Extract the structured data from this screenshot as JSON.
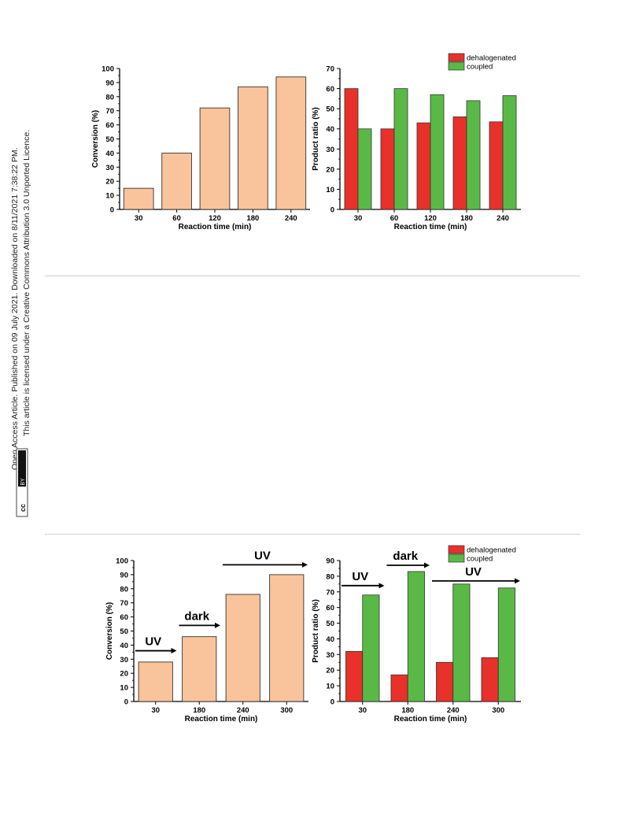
{
  "side_note": {
    "line1": "Open Access Article. Published on 09 July 2021. Downloaded on 8/11/2021 7:38:22 PM.",
    "line2": "This article is licensed under a Creative Commons Attribution 3.0 Unported Licence.",
    "badge_left": "cc",
    "badge_right": "BY"
  },
  "colors": {
    "conversion_bar": "#f9c49b",
    "dehalogenated": "#e8312a",
    "coupled": "#5ab946",
    "rule": "#cfcfc4"
  },
  "chart_data": [
    {
      "type": "bar",
      "categories": [
        "30",
        "60",
        "120",
        "180",
        "240"
      ],
      "values": [
        15,
        40,
        72,
        87,
        94
      ],
      "xlabel": "Reaction time (min)",
      "ylabel": "Conversion (%)",
      "ylim": [
        0,
        100
      ],
      "yticks": [
        0,
        10,
        20,
        30,
        40,
        50,
        60,
        70,
        80,
        90,
        100
      ],
      "annotations": []
    },
    {
      "type": "bar",
      "categories": [
        "30",
        "60",
        "120",
        "180",
        "240"
      ],
      "series": [
        {
          "name": "dehalogenated",
          "values": [
            60,
            40,
            43,
            46,
            43.5
          ]
        },
        {
          "name": "coupled",
          "values": [
            40,
            60,
            57,
            54,
            56.5
          ]
        }
      ],
      "xlabel": "Reaction time (min)",
      "ylabel": "Product ratio (%)",
      "ylim": [
        0,
        70
      ],
      "yticks": [
        0,
        10,
        20,
        30,
        40,
        50,
        60,
        70
      ],
      "legend": "top-right",
      "annotations": []
    },
    {
      "type": "bar",
      "categories": [
        "30",
        "180",
        "240",
        "300"
      ],
      "values": [
        28,
        46,
        76,
        90
      ],
      "xlabel": "Reaction time (min)",
      "ylabel": "Conversion (%)",
      "ylim": [
        0,
        100
      ],
      "yticks": [
        0,
        10,
        20,
        30,
        40,
        50,
        60,
        70,
        80,
        90,
        100
      ],
      "annotations": [
        {
          "text": "UV",
          "y": 36,
          "from": 0,
          "to": 1
        },
        {
          "text": "dark",
          "y": 54,
          "from": 1,
          "to": 2
        },
        {
          "text": "UV",
          "y": 97,
          "from": 2,
          "to": 4
        }
      ]
    },
    {
      "type": "bar",
      "categories": [
        "30",
        "180",
        "240",
        "300"
      ],
      "series": [
        {
          "name": "dehalogenated",
          "values": [
            32,
            17,
            25,
            28
          ]
        },
        {
          "name": "coupled",
          "values": [
            68,
            83,
            75,
            72.5
          ]
        }
      ],
      "xlabel": "Reaction time (min)",
      "ylabel": "Product ratio (%)",
      "ylim": [
        0,
        90
      ],
      "yticks": [
        0,
        10,
        20,
        30,
        40,
        50,
        60,
        70,
        80,
        90
      ],
      "legend": "top-right",
      "annotations": [
        {
          "text": "UV",
          "y": 74,
          "from": 0,
          "to": 1
        },
        {
          "text": "dark",
          "y": 87,
          "from": 1,
          "to": 2
        },
        {
          "text": "UV",
          "y": 77,
          "from": 2,
          "to": 4
        }
      ]
    }
  ]
}
